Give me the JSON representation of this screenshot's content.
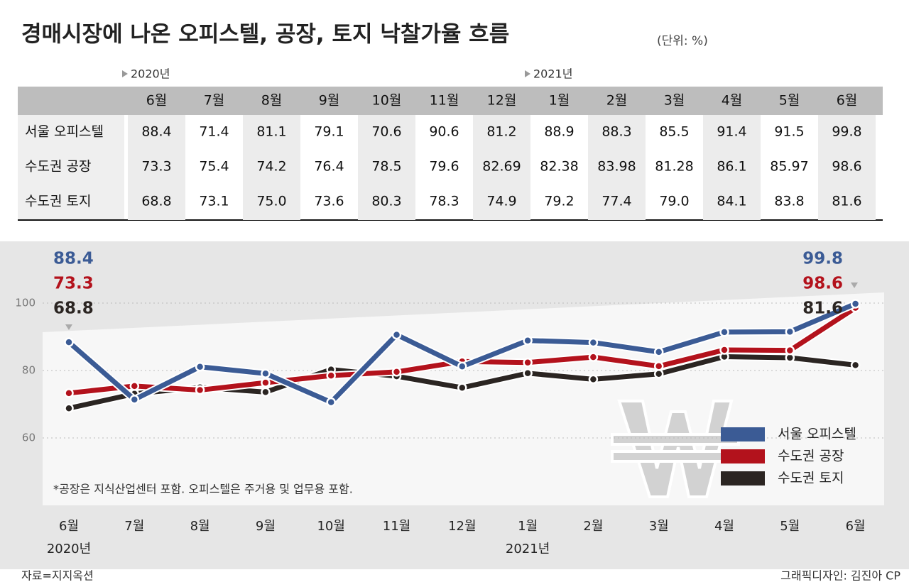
{
  "chart_data": {
    "type": "line",
    "title": "경매시장에 나온 오피스텔, 공장, 토지 낙찰가율 흐름",
    "unit": "(단위: %)",
    "categories": [
      "6월",
      "7월",
      "8월",
      "9월",
      "10월",
      "11월",
      "12월",
      "1월",
      "2월",
      "3월",
      "4월",
      "5월",
      "6월"
    ],
    "years": [
      "2020년",
      null,
      null,
      null,
      null,
      null,
      null,
      "2021년",
      null,
      null,
      null,
      null,
      null
    ],
    "series": [
      {
        "name": "서울 오피스텔",
        "color": "#3b5b95",
        "values": [
          88.4,
          71.4,
          81.1,
          79.1,
          70.6,
          90.6,
          81.2,
          88.9,
          88.3,
          85.5,
          91.4,
          91.5,
          99.8
        ],
        "value_labels": [
          "88.4",
          "71.4",
          "81.1",
          "79.1",
          "70.6",
          "90.6",
          "81.2",
          "88.9",
          "88.3",
          "85.5",
          "91.4",
          "91.5",
          "99.8"
        ]
      },
      {
        "name": "수도권 공장",
        "color": "#b3121c",
        "values": [
          73.3,
          75.4,
          74.2,
          76.4,
          78.5,
          79.6,
          82.69,
          82.38,
          83.98,
          81.28,
          86.1,
          85.97,
          98.6
        ],
        "value_labels": [
          "73.3",
          "75.4",
          "74.2",
          "76.4",
          "78.5",
          "79.6",
          "82.69",
          "82.38",
          "83.98",
          "81.28",
          "86.1",
          "85.97",
          "98.6"
        ]
      },
      {
        "name": "수도권 토지",
        "color": "#2b2522",
        "values": [
          68.8,
          73.1,
          75,
          73.6,
          80.3,
          78.3,
          74.9,
          79.2,
          77.4,
          79,
          84.1,
          83.8,
          81.6
        ],
        "value_labels": [
          "68.8",
          "73.1",
          "75.0",
          "73.6",
          "80.3",
          "78.3",
          "74.9",
          "79.2",
          "77.4",
          "79.0",
          "84.1",
          "83.8",
          "81.6"
        ]
      }
    ],
    "ylim": [
      40,
      120
    ],
    "yticks": [
      60,
      80,
      100
    ],
    "grid": true,
    "note": "*공장은 지식산업센터 포함. 오피스텔은 주거용 및 업무용 포함.",
    "source": "자료=지지옥션",
    "credit": "그래픽디자인: 김진아 CP"
  }
}
